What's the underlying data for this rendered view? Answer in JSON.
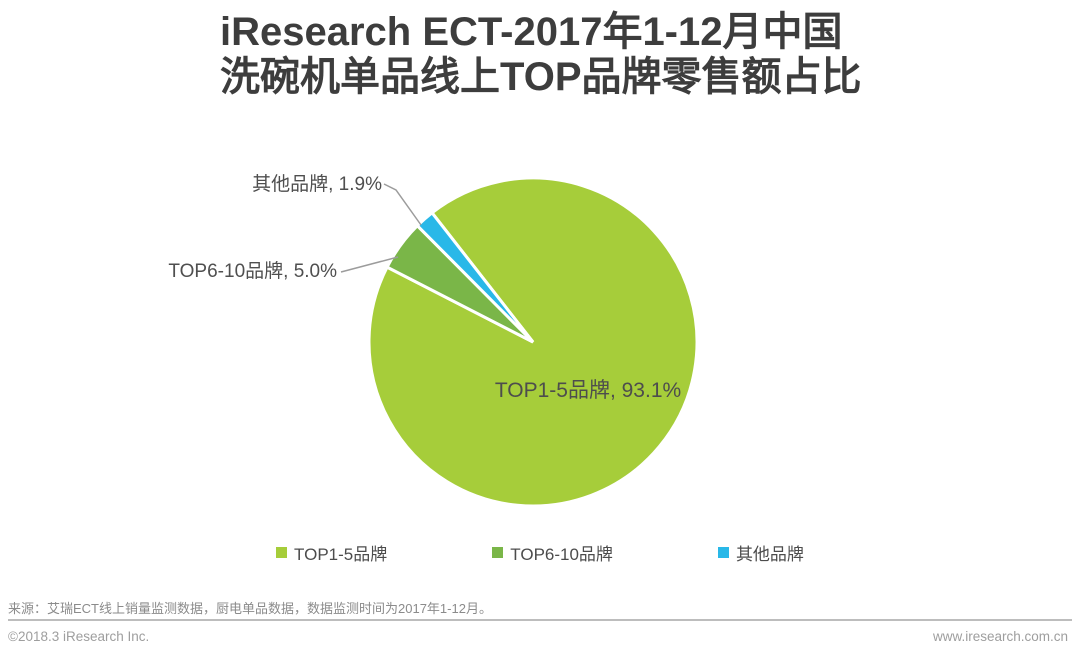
{
  "title": {
    "line1": "iResearch ECT-2017年1-12月中国",
    "line2": "洗碗机单品线上TOP品牌零售额占比"
  },
  "chart_data": {
    "type": "pie",
    "series": [
      {
        "label": "TOP1-5品牌",
        "value": 93.1,
        "color": "#a6cd3a",
        "data_label": "TOP1-5品牌, 93.1%"
      },
      {
        "label": "TOP6-10品牌",
        "value": 5.0,
        "color": "#7ab648",
        "data_label": "TOP6-10品牌, 5.0%"
      },
      {
        "label": "其他品牌",
        "value": 1.9,
        "color": "#29b8e8",
        "data_label": "其他品牌, 1.9%"
      }
    ],
    "unit": "%",
    "start_angle_deg": 322,
    "clockwise": true,
    "slice_border_color": "#ffffff",
    "legend_position": "bottom",
    "label_style": "outside-for-small-slices"
  },
  "footer": {
    "source": "来源：艾瑞ECT线上销量监测数据，厨电单品数据，数据监测时间为2017年1-12月。",
    "copyright": "©2018.3 iResearch Inc.",
    "website": "www.iresearch.com.cn"
  }
}
